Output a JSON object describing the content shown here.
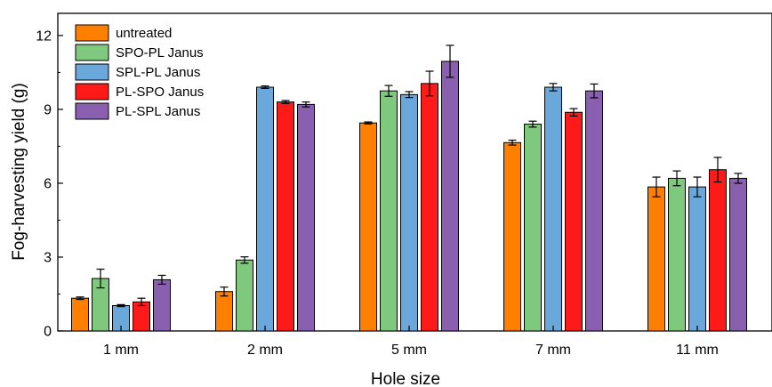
{
  "chart_data": {
    "type": "bar",
    "xlabel": "Hole size",
    "ylabel": "Fog-harvesting yield (g)",
    "ylim": [
      0,
      12.9
    ],
    "yticks": [
      0,
      3,
      6,
      9,
      12
    ],
    "categories": [
      "1 mm",
      "2 mm",
      "5 mm",
      "7 mm",
      "11 mm"
    ],
    "legend_position": "top-left",
    "series": [
      {
        "name": "untreated",
        "color": "#ff8000",
        "values": [
          1.33,
          1.6,
          8.45,
          7.65,
          5.85
        ],
        "errors": [
          0.05,
          0.18,
          0.04,
          0.1,
          0.4
        ]
      },
      {
        "name": "SPO-PL Janus",
        "color": "#7fc97f",
        "values": [
          2.13,
          2.88,
          9.75,
          8.4,
          6.2
        ],
        "errors": [
          0.38,
          0.13,
          0.22,
          0.12,
          0.3
        ]
      },
      {
        "name": "SPL-PL Janus",
        "color": "#6aa8dc",
        "values": [
          1.03,
          9.9,
          9.6,
          9.9,
          5.85
        ],
        "errors": [
          0.04,
          0.05,
          0.12,
          0.15,
          0.4
        ]
      },
      {
        "name": "PL-SPO Janus",
        "color": "#ff1a1a",
        "values": [
          1.18,
          9.3,
          10.05,
          8.88,
          6.55
        ],
        "errors": [
          0.15,
          0.06,
          0.5,
          0.15,
          0.5
        ]
      },
      {
        "name": "PL-SPL Janus",
        "color": "#8a5fb0",
        "values": [
          2.08,
          9.2,
          10.95,
          9.75,
          6.2
        ],
        "errors": [
          0.18,
          0.1,
          0.65,
          0.28,
          0.2
        ]
      }
    ]
  }
}
